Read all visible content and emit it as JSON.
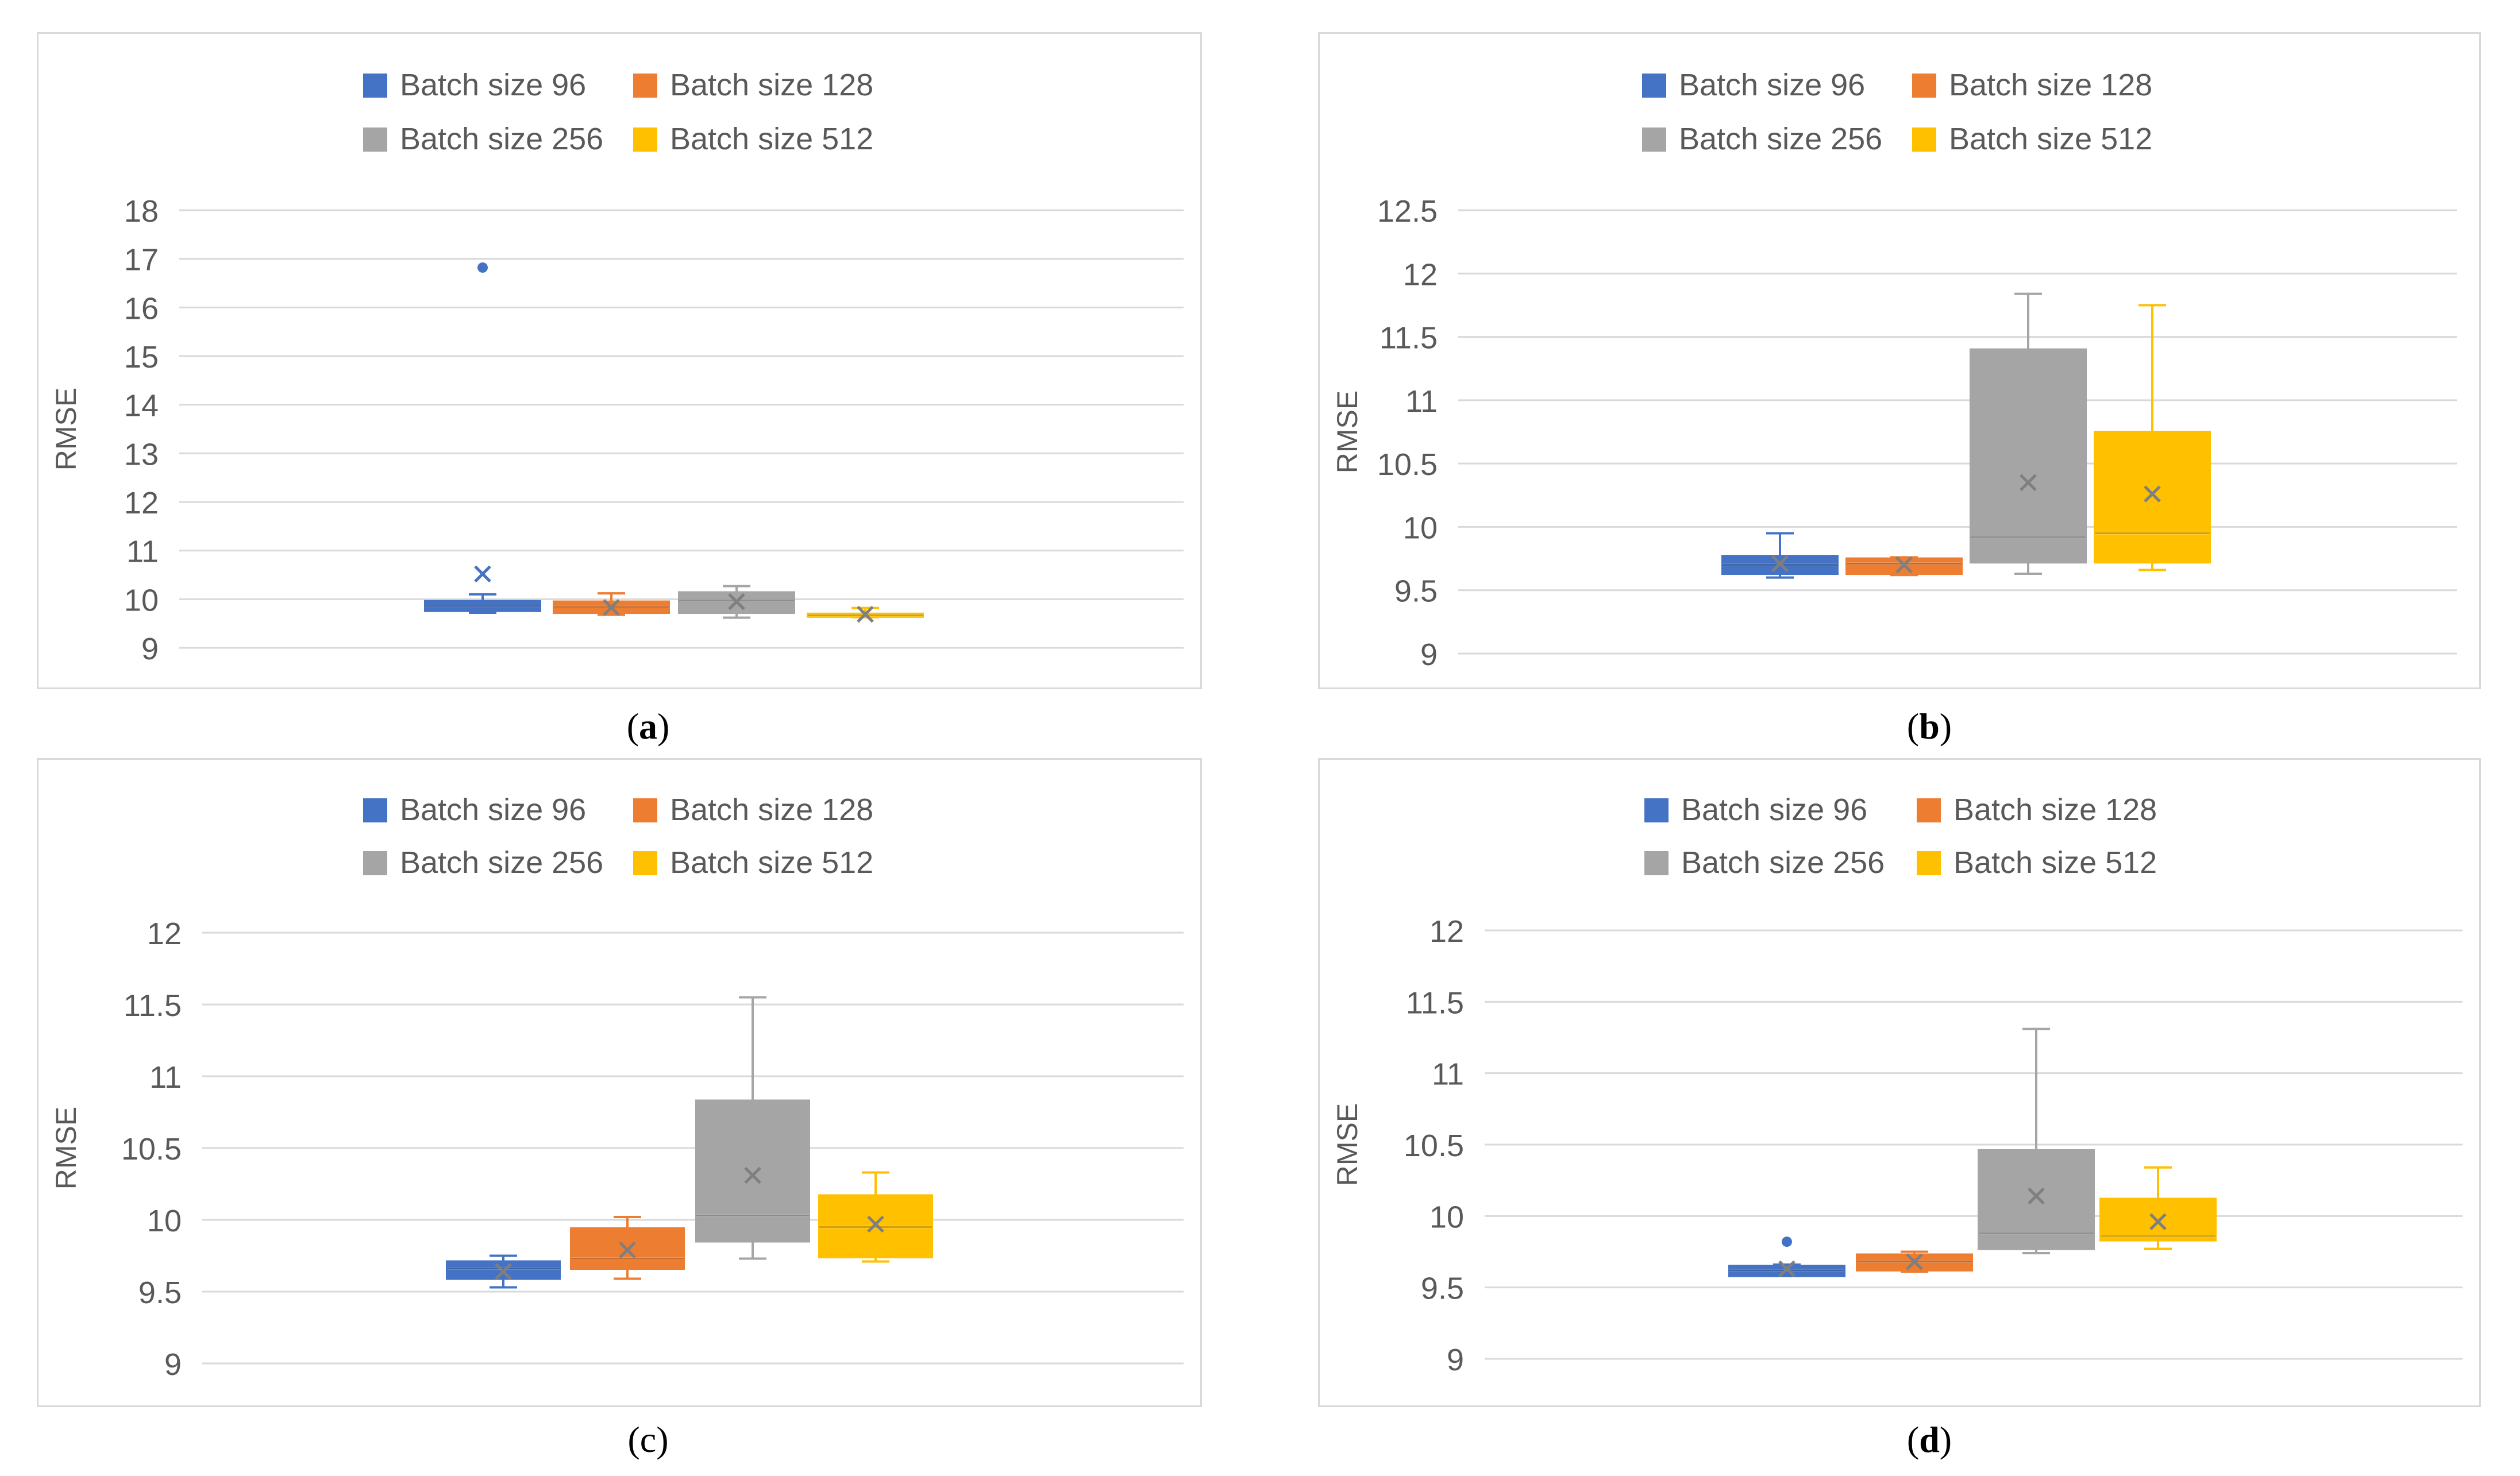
{
  "colors": {
    "Batch size 96": "#4472c4",
    "Batch size 128": "#ed7d31",
    "Batch size 256": "#a5a5a5",
    "Batch size 512": "#ffc000",
    "grid": "#d9d9d9",
    "text": "#595959"
  },
  "chart_data": [
    {
      "type": "boxplot",
      "caption_letter": "a",
      "ylabel": "RMSE",
      "ylim": [
        9,
        18
      ],
      "yticks": [
        "9",
        "10",
        "11",
        "12",
        "13",
        "14",
        "15",
        "16",
        "17",
        "18"
      ],
      "legend": [
        "Batch size 96",
        "Batch size 128",
        "Batch size 256",
        "Batch size 512"
      ],
      "series": [
        {
          "name": "Batch size 96",
          "min": 9.72,
          "q1": 9.76,
          "median": 9.86,
          "q3": 9.96,
          "max": 10.1,
          "mean": 10.52,
          "outliers": [
            16.82
          ]
        },
        {
          "name": "Batch size 128",
          "min": 9.68,
          "q1": 9.72,
          "median": 9.84,
          "q3": 9.95,
          "max": 10.12,
          "mean": 9.83,
          "outliers": []
        },
        {
          "name": "Batch size 256",
          "min": 9.62,
          "q1": 9.72,
          "median": 9.98,
          "q3": 10.14,
          "max": 10.27,
          "mean": 9.95,
          "outliers": []
        },
        {
          "name": "Batch size 512",
          "min": 9.63,
          "q1": 9.64,
          "median": 9.67,
          "q3": 9.7,
          "max": 9.82,
          "mean": 9.69,
          "outliers": []
        }
      ]
    },
    {
      "type": "boxplot",
      "caption_letter": "b",
      "ylabel": "RMSE",
      "ylim": [
        9,
        12.5
      ],
      "yticks": [
        "9",
        "9.5",
        "10",
        "10.5",
        "11",
        "11.5",
        "12",
        "12.5"
      ],
      "legend": [
        "Batch size 96",
        "Batch size 128",
        "Batch size 256",
        "Batch size 512"
      ],
      "series": [
        {
          "name": "Batch size 96",
          "min": 9.6,
          "q1": 9.63,
          "median": 9.7,
          "q3": 9.77,
          "max": 9.95,
          "mean": 9.71,
          "outliers": []
        },
        {
          "name": "Batch size 128",
          "min": 9.62,
          "q1": 9.63,
          "median": 9.71,
          "q3": 9.75,
          "max": 9.76,
          "mean": 9.7,
          "outliers": []
        },
        {
          "name": "Batch size 256",
          "min": 9.63,
          "q1": 9.72,
          "median": 9.92,
          "q3": 11.4,
          "max": 11.84,
          "mean": 10.35,
          "outliers": []
        },
        {
          "name": "Batch size 512",
          "min": 9.66,
          "q1": 9.72,
          "median": 9.95,
          "q3": 10.75,
          "max": 11.75,
          "mean": 10.26,
          "outliers": []
        }
      ]
    },
    {
      "type": "boxplot",
      "caption_letter": "c",
      "ylabel": "RMSE",
      "ylim": [
        9,
        12
      ],
      "yticks": [
        "9",
        "9.5",
        "10",
        "10.5",
        "11",
        "11.5",
        "12"
      ],
      "legend": [
        "Batch size 96",
        "Batch size 128",
        "Batch size 256",
        "Batch size 512"
      ],
      "series": [
        {
          "name": "Batch size 96",
          "min": 9.53,
          "q1": 9.59,
          "median": 9.66,
          "q3": 9.71,
          "max": 9.75,
          "mean": 9.64,
          "outliers": []
        },
        {
          "name": "Batch size 128",
          "min": 9.59,
          "q1": 9.66,
          "median": 9.73,
          "q3": 9.94,
          "max": 10.02,
          "mean": 9.79,
          "outliers": []
        },
        {
          "name": "Batch size 256",
          "min": 9.73,
          "q1": 9.85,
          "median": 10.03,
          "q3": 10.83,
          "max": 11.55,
          "mean": 10.31,
          "outliers": []
        },
        {
          "name": "Batch size 512",
          "min": 9.71,
          "q1": 9.74,
          "median": 9.95,
          "q3": 10.17,
          "max": 10.33,
          "mean": 9.97,
          "outliers": []
        }
      ]
    },
    {
      "type": "boxplot",
      "caption_letter": "d",
      "ylabel": "RMSE",
      "ylim": [
        9,
        12
      ],
      "yticks": [
        "9",
        "9.5",
        "10",
        "10.5",
        "11",
        "11.5",
        "12"
      ],
      "legend": [
        "Batch size 96",
        "Batch size 128",
        "Batch size 256",
        "Batch size 512"
      ],
      "series": [
        {
          "name": "Batch size 96",
          "min": 9.58,
          "q1": 9.58,
          "median": 9.62,
          "q3": 9.65,
          "max": 9.66,
          "mean": 9.63,
          "outliers": [
            9.82
          ]
        },
        {
          "name": "Batch size 128",
          "min": 9.61,
          "q1": 9.62,
          "median": 9.68,
          "q3": 9.73,
          "max": 9.75,
          "mean": 9.68,
          "outliers": []
        },
        {
          "name": "Batch size 256",
          "min": 9.74,
          "q1": 9.77,
          "median": 9.88,
          "q3": 10.46,
          "max": 11.31,
          "mean": 10.14,
          "outliers": []
        },
        {
          "name": "Batch size 512",
          "min": 9.77,
          "q1": 9.83,
          "median": 9.86,
          "q3": 10.12,
          "max": 10.34,
          "mean": 9.96,
          "outliers": []
        }
      ]
    }
  ]
}
